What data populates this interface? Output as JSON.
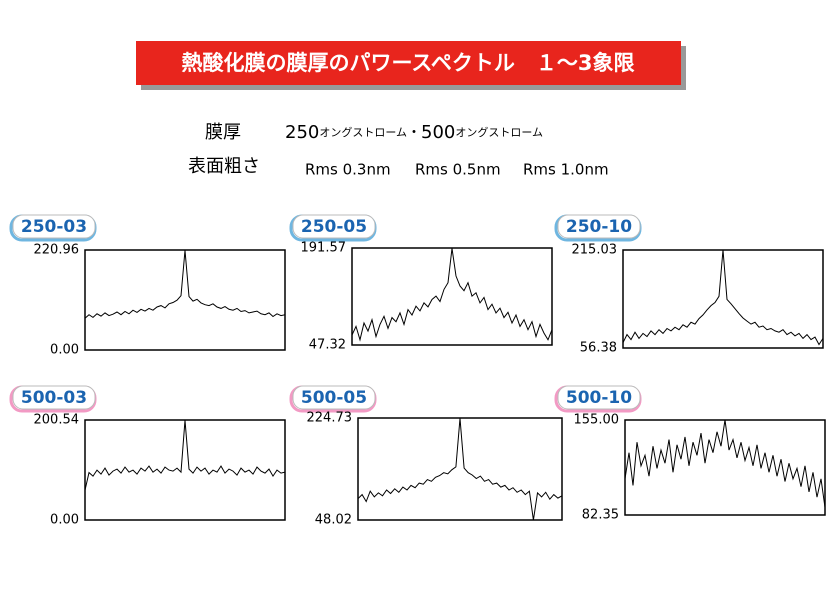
{
  "header": {
    "title": "熱酸化膜の膜厚のパワースペクトル　１～3象限",
    "thickness": {
      "label": "膜厚",
      "parts": [
        "250",
        "オングストローム",
        "・",
        "500",
        "オングストローム"
      ]
    },
    "roughness": {
      "label": "表面粗さ",
      "values": [
        "Rms 0.3nm",
        "Rms 0.5nm",
        "Rms 1.0nm"
      ]
    }
  },
  "chart_data": [
    {
      "type": "line",
      "title": "250-03",
      "color": "#000000",
      "ylim": [
        0,
        220.96
      ],
      "yticks": [
        {
          "value": 0,
          "label": "0.00"
        },
        {
          "value": 220.96,
          "label": "220.96"
        }
      ],
      "values": [
        70,
        78,
        72,
        80,
        75,
        82,
        76,
        79,
        84,
        78,
        85,
        80,
        88,
        83,
        90,
        86,
        92,
        88,
        95,
        98,
        93,
        102,
        105,
        110,
        120,
        220,
        118,
        108,
        112,
        104,
        100,
        98,
        102,
        95,
        92,
        96,
        90,
        88,
        92,
        85,
        87,
        82,
        84,
        86,
        80,
        78,
        82,
        74,
        80,
        76,
        78
      ]
    },
    {
      "type": "line",
      "title": "250-05",
      "color": "#000000",
      "ylim": [
        47.32,
        191.57
      ],
      "yticks": [
        {
          "value": 47.32,
          "label": "47.32"
        },
        {
          "value": 191.57,
          "label": "191.57"
        }
      ],
      "values": [
        62,
        75,
        55,
        80,
        68,
        85,
        60,
        78,
        90,
        72,
        88,
        82,
        95,
        78,
        100,
        92,
        105,
        98,
        110,
        104,
        115,
        120,
        112,
        130,
        140,
        191,
        150,
        135,
        128,
        140,
        120,
        125,
        110,
        118,
        100,
        108,
        95,
        102,
        88,
        96,
        80,
        92,
        75,
        85,
        70,
        82,
        60,
        78,
        65,
        55,
        70
      ]
    },
    {
      "type": "line",
      "title": "250-10",
      "color": "#000000",
      "ylim": [
        56.38,
        215.03
      ],
      "yticks": [
        {
          "value": 56.38,
          "label": "56.38"
        },
        {
          "value": 215.03,
          "label": "215.03"
        }
      ],
      "values": [
        65,
        78,
        70,
        82,
        72,
        80,
        75,
        84,
        78,
        86,
        80,
        88,
        84,
        90,
        86,
        94,
        90,
        98,
        95,
        104,
        110,
        118,
        125,
        130,
        140,
        215,
        135,
        128,
        120,
        112,
        105,
        100,
        95,
        98,
        90,
        92,
        86,
        88,
        84,
        82,
        86,
        78,
        82,
        76,
        80,
        72,
        78,
        70,
        74,
        62,
        72
      ]
    },
    {
      "type": "line",
      "title": "500-03",
      "color": "#000000",
      "ylim": [
        0,
        200.54
      ],
      "yticks": [
        {
          "value": 0,
          "label": "0.00"
        },
        {
          "value": 200.54,
          "label": "200.54"
        }
      ],
      "values": [
        60,
        95,
        88,
        100,
        92,
        104,
        90,
        98,
        102,
        94,
        106,
        96,
        100,
        92,
        104,
        98,
        108,
        96,
        102,
        94,
        106,
        100,
        98,
        104,
        96,
        200,
        102,
        94,
        106,
        98,
        104,
        92,
        100,
        96,
        108,
        94,
        102,
        98,
        90,
        104,
        96,
        100,
        92,
        106,
        98,
        94,
        102,
        88,
        100,
        94,
        96
      ]
    },
    {
      "type": "line",
      "title": "500-05",
      "color": "#000000",
      "ylim": [
        48.02,
        224.73
      ],
      "yticks": [
        {
          "value": 48.02,
          "label": "48.02"
        },
        {
          "value": 224.73,
          "label": "224.73"
        }
      ],
      "values": [
        85,
        92,
        80,
        98,
        88,
        95,
        90,
        100,
        94,
        102,
        96,
        105,
        100,
        108,
        104,
        112,
        110,
        118,
        115,
        122,
        125,
        130,
        128,
        135,
        140,
        224,
        138,
        130,
        126,
        120,
        124,
        115,
        118,
        110,
        112,
        105,
        108,
        100,
        104,
        96,
        100,
        92,
        98,
        48,
        95,
        88,
        96,
        84,
        92,
        86,
        90
      ]
    },
    {
      "type": "line",
      "title": "500-10",
      "color": "#000000",
      "ylim": [
        82.35,
        155.0
      ],
      "yticks": [
        {
          "value": 82.35,
          "label": "82.35"
        },
        {
          "value": 155.0,
          "label": "155.00"
        }
      ],
      "values": [
        110,
        130,
        105,
        138,
        120,
        128,
        112,
        135,
        118,
        132,
        122,
        140,
        115,
        136,
        125,
        142,
        120,
        138,
        128,
        145,
        122,
        140,
        130,
        146,
        135,
        155,
        132,
        140,
        126,
        138,
        124,
        134,
        120,
        136,
        118,
        130,
        115,
        128,
        112,
        125,
        108,
        122,
        110,
        118,
        104,
        120,
        100,
        115,
        96,
        110,
        88
      ]
    }
  ]
}
